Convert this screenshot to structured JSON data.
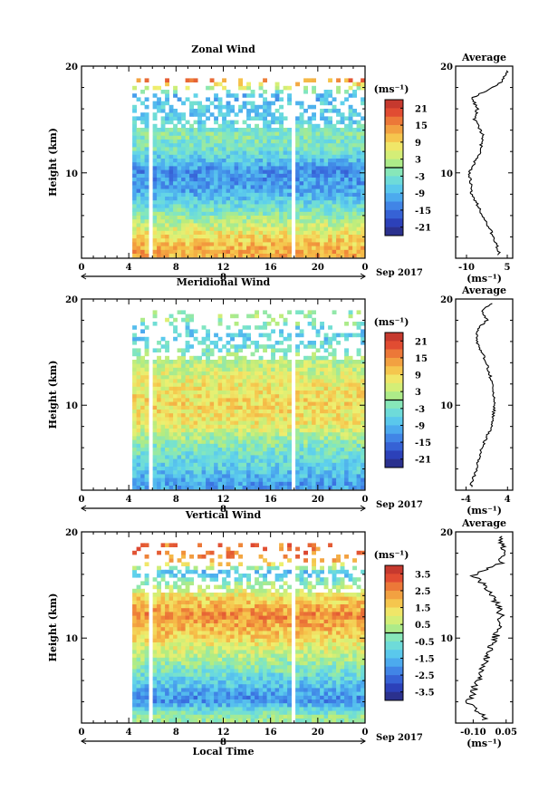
{
  "chart_data": [
    {
      "type": "heatmap",
      "title": "Zonal Wind",
      "ylabel": "Height (km)",
      "ylim": [
        2,
        20
      ],
      "yticks": [
        10,
        20
      ],
      "x_ticks": [
        "0",
        "4",
        "8",
        "12",
        "16",
        "20",
        "0"
      ],
      "xlim_hours": [
        0,
        24
      ],
      "date_day_label": "8",
      "date_month_label": "Sep 2017",
      "colorbar_unit": "(ms⁻¹)",
      "colorbar_labels": [
        "21",
        "15",
        "9",
        "3",
        "-3",
        "-9",
        "-15",
        "-21"
      ],
      "colorbar_range": [
        -24,
        24
      ],
      "data_start_hour": 4.3,
      "gap_hour": 17.8,
      "average_profile": {
        "title": "Average",
        "xlabel": "(ms⁻¹)",
        "xlim": [
          -14,
          7
        ],
        "xticks": [
          "-10",
          "5"
        ],
        "xtick_values": [
          -10,
          5
        ],
        "height_km": [
          2.5,
          4,
          6,
          8,
          10,
          12,
          13.5,
          15,
          16,
          17,
          18.5,
          19.5
        ],
        "values": [
          2,
          0,
          -4,
          -8,
          -9,
          -5,
          -4,
          -7,
          -6,
          -8,
          3,
          5
        ]
      }
    },
    {
      "type": "heatmap",
      "title": "Meridional Wind",
      "ylabel": "Height (km)",
      "ylim": [
        2,
        20
      ],
      "yticks": [
        10,
        20
      ],
      "x_ticks": [
        "0",
        "4",
        "8",
        "12",
        "16",
        "20",
        "0"
      ],
      "xlim_hours": [
        0,
        24
      ],
      "date_day_label": "8",
      "date_month_label": "Sep 2017",
      "colorbar_unit": "(ms⁻¹)",
      "colorbar_labels": [
        "21",
        "15",
        "9",
        "3",
        "-3",
        "-9",
        "-15",
        "-21"
      ],
      "colorbar_range": [
        -24,
        24
      ],
      "data_start_hour": 4.3,
      "gap_hour": 17.8,
      "average_profile": {
        "title": "Average",
        "xlabel": "(ms⁻¹)",
        "xlim": [
          -6,
          5
        ],
        "xticks": [
          "-4",
          "4"
        ],
        "xtick_values": [
          -4,
          4
        ],
        "height_km": [
          2.5,
          4,
          6,
          8,
          10,
          12,
          14,
          16,
          17,
          18,
          19,
          19.5
        ],
        "values": [
          -3,
          -2,
          -1,
          1,
          1.5,
          1,
          0,
          -2,
          -2,
          0,
          -1,
          1
        ]
      }
    },
    {
      "type": "heatmap",
      "title": "Vertical Wind",
      "ylabel": "Height (km)",
      "ylim": [
        2,
        20
      ],
      "yticks": [
        10,
        20
      ],
      "x_ticks": [
        "0",
        "4",
        "8",
        "12",
        "16",
        "20",
        "0"
      ],
      "xlim_hours": [
        0,
        24
      ],
      "date_day_label": "8",
      "date_month_label": "Sep 2017",
      "xlabel": "Local Time",
      "colorbar_unit": "(ms⁻¹)",
      "colorbar_labels": [
        "3.5",
        "2.5",
        "1.5",
        "0.5",
        "-0.5",
        "-1.5",
        "-2.5",
        "-3.5"
      ],
      "colorbar_range": [
        -4,
        4
      ],
      "data_start_hour": 4.3,
      "gap_hour": 17.8,
      "average_profile": {
        "title": "Average",
        "xlabel": "(ms⁻¹)",
        "xlim": [
          -0.18,
          0.08
        ],
        "xticks": [
          "-0.10",
          "0.05"
        ],
        "xtick_values": [
          -0.1,
          0.05
        ],
        "height_km": [
          2.5,
          4,
          6,
          8,
          10,
          12,
          13.5,
          15,
          16,
          17,
          18,
          19.5
        ],
        "values": [
          -0.05,
          -0.12,
          -0.08,
          -0.04,
          0.0,
          0.03,
          0.0,
          -0.05,
          -0.1,
          0.02,
          0.04,
          0.03
        ]
      }
    }
  ]
}
